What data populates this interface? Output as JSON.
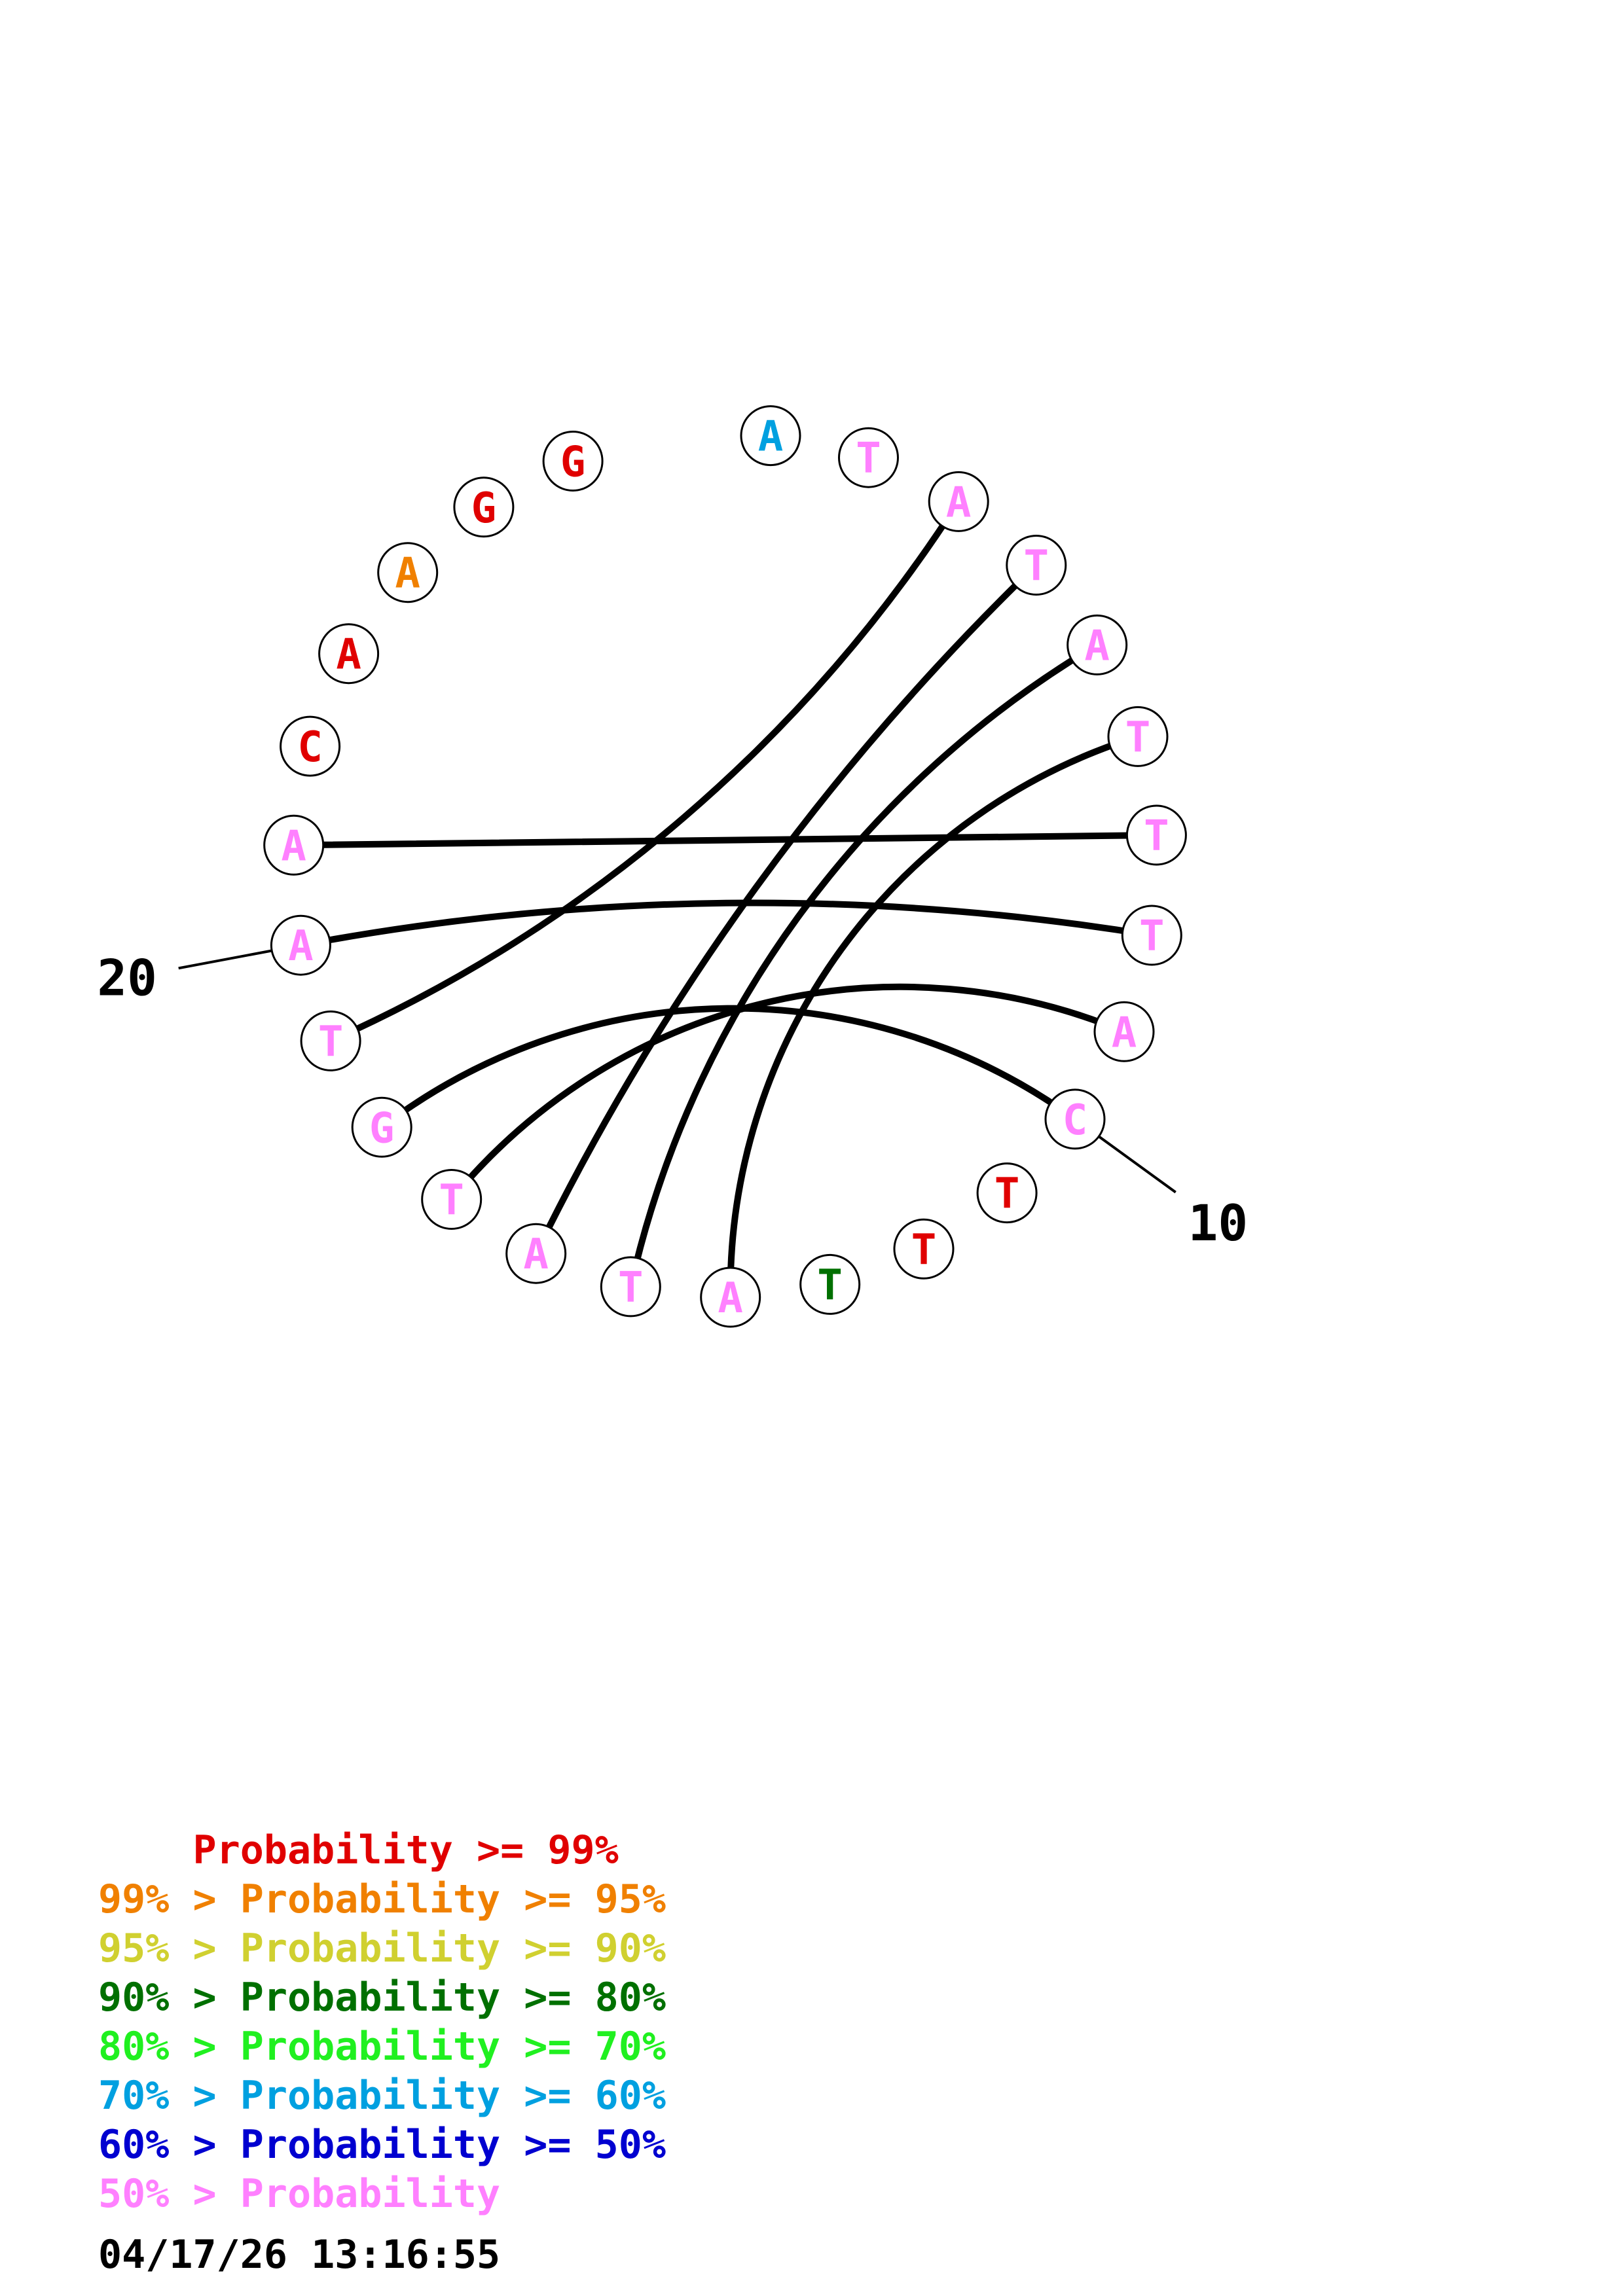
{
  "sequence": [
    {
      "n": 1,
      "base": "A",
      "color": "#00a0e0"
    },
    {
      "n": 2,
      "base": "T",
      "color": "#ff80ff"
    },
    {
      "n": 3,
      "base": "A",
      "color": "#ff80ff"
    },
    {
      "n": 4,
      "base": "T",
      "color": "#ff80ff"
    },
    {
      "n": 5,
      "base": "A",
      "color": "#ff80ff"
    },
    {
      "n": 6,
      "base": "T",
      "color": "#ff80ff"
    },
    {
      "n": 7,
      "base": "T",
      "color": "#ff80ff"
    },
    {
      "n": 8,
      "base": "T",
      "color": "#ff80ff"
    },
    {
      "n": 9,
      "base": "A",
      "color": "#ff80ff"
    },
    {
      "n": 10,
      "base": "C",
      "color": "#ff80ff"
    },
    {
      "n": 11,
      "base": "T",
      "color": "#e00000"
    },
    {
      "n": 12,
      "base": "T",
      "color": "#e00000"
    },
    {
      "n": 13,
      "base": "T",
      "color": "#007000"
    },
    {
      "n": 14,
      "base": "A",
      "color": "#ff80ff"
    },
    {
      "n": 15,
      "base": "T",
      "color": "#ff80ff"
    },
    {
      "n": 16,
      "base": "A",
      "color": "#ff80ff"
    },
    {
      "n": 17,
      "base": "T",
      "color": "#ff80ff"
    },
    {
      "n": 18,
      "base": "G",
      "color": "#ff80ff"
    },
    {
      "n": 19,
      "base": "T",
      "color": "#ff80ff"
    },
    {
      "n": 20,
      "base": "A",
      "color": "#ff80ff"
    },
    {
      "n": 21,
      "base": "A",
      "color": "#ff80ff"
    },
    {
      "n": 22,
      "base": "C",
      "color": "#e00000"
    },
    {
      "n": 23,
      "base": "A",
      "color": "#e00000"
    },
    {
      "n": 24,
      "base": "A",
      "color": "#f08000"
    },
    {
      "n": 25,
      "base": "G",
      "color": "#e00000"
    },
    {
      "n": 26,
      "base": "G",
      "color": "#e00000"
    }
  ],
  "pairs": [
    [
      3,
      19
    ],
    [
      4,
      16
    ],
    [
      5,
      15
    ],
    [
      6,
      14
    ],
    [
      7,
      21
    ],
    [
      8,
      20
    ],
    [
      9,
      17
    ],
    [
      10,
      18
    ]
  ],
  "position_labels": [
    {
      "n": 10,
      "text": "10"
    },
    {
      "n": 20,
      "text": "20"
    }
  ],
  "legend": [
    {
      "prefix": "    ",
      "text": "Probability >= 99%",
      "color": "#e00000"
    },
    {
      "prefix": "99% > ",
      "text": "Probability >= 95%",
      "color": "#f08000"
    },
    {
      "prefix": "95% > ",
      "text": "Probability >= 90%",
      "color": "#d0d030"
    },
    {
      "prefix": "90% > ",
      "text": "Probability >= 80%",
      "color": "#007000"
    },
    {
      "prefix": "80% > ",
      "text": "Probability >= 70%",
      "color": "#20f020"
    },
    {
      "prefix": "70% > ",
      "text": "Probability >= 60%",
      "color": "#00a0e0"
    },
    {
      "prefix": "60% > ",
      "text": "Probability >= 50%",
      "color": "#0000d0"
    },
    {
      "prefix": "50% > ",
      "text": "Probability",
      "color": "#ff80ff"
    }
  ],
  "timestamp": "04/17/26 13:16:55"
}
